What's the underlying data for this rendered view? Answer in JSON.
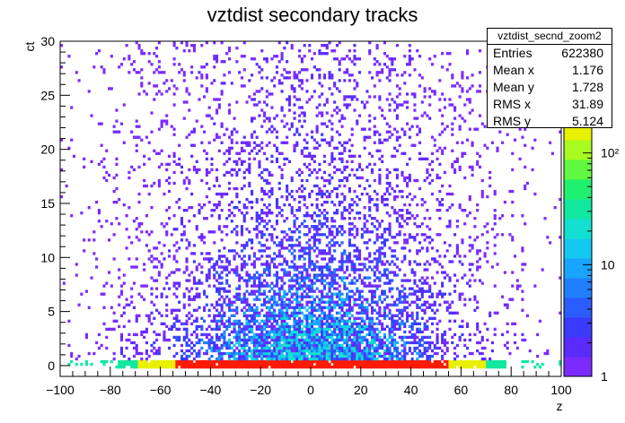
{
  "chart_data": {
    "type": "heatmap",
    "title": "vztdist secondary tracks",
    "xlabel": "z",
    "ylabel": "ct",
    "xlim": [
      -100,
      100
    ],
    "ylim": [
      -1,
      30
    ],
    "x_ticks": [
      "−100",
      "−80",
      "−60",
      "−40",
      "−20",
      "0",
      "20",
      "40",
      "60",
      "80",
      "100"
    ],
    "y_ticks": [
      "0",
      "5",
      "10",
      "15",
      "20",
      "25",
      "30"
    ],
    "z_scale": "log",
    "zlim": [
      1,
      1000
    ],
    "z_ticks": [
      "1",
      "10",
      "10²"
    ],
    "grid": false,
    "palette": [
      "#7b2bff",
      "#5a2bff",
      "#3a3bff",
      "#2a5bff",
      "#1f7fff",
      "#19a4ff",
      "#14c8f0",
      "#12e0d0",
      "#10e8a0",
      "#20f070",
      "#60f840",
      "#a8fa20",
      "#e8f000",
      "#ffd000",
      "#ffa000",
      "#ff6000",
      "#ff1a00"
    ],
    "stats": {
      "name": "vztdist_secnd_zoom2",
      "rows": [
        {
          "label": "Entries",
          "value": "622380"
        },
        {
          "label": "Mean x",
          "value": "1.176"
        },
        {
          "label": "Mean y",
          "value": "1.728"
        },
        {
          "label": "RMS x",
          "value": "31.89"
        },
        {
          "label": "RMS y",
          "value": "5.124"
        }
      ]
    }
  }
}
